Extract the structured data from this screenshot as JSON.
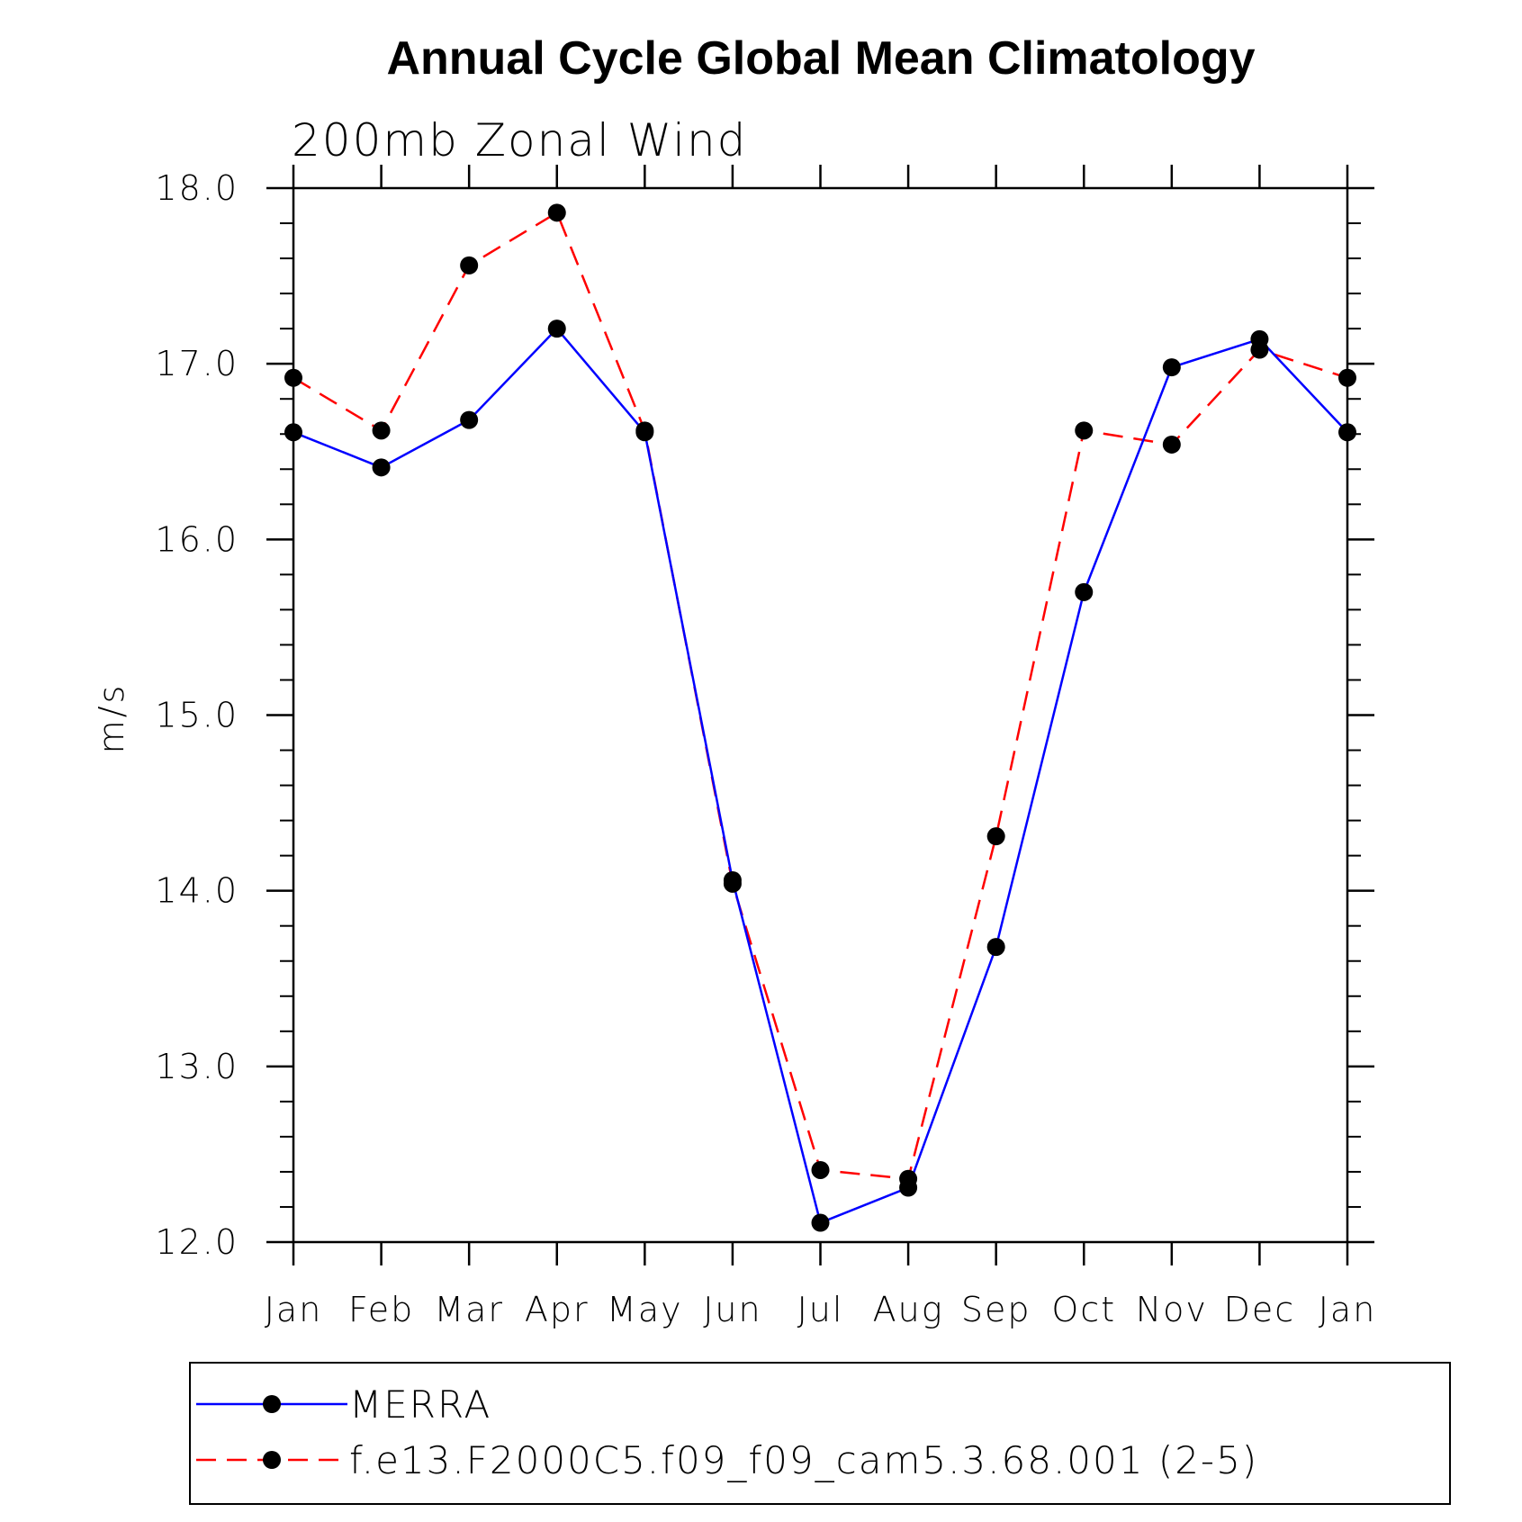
{
  "chart_data": {
    "type": "line",
    "title": "Annual Cycle Global Mean Climatology",
    "subtitle": "200mb  Zonal  Wind",
    "xlabel": "",
    "ylabel": "m/s",
    "categories": [
      "Jan",
      "Feb",
      "Mar",
      "Apr",
      "May",
      "Jun",
      "Jul",
      "Aug",
      "Sep",
      "Oct",
      "Nov",
      "Dec",
      "Jan"
    ],
    "ylim": [
      12.0,
      18.0
    ],
    "yticks": [
      "12.0",
      "13.0",
      "14.0",
      "15.0",
      "16.0",
      "17.0",
      "18.0"
    ],
    "legend_position": "bottom",
    "grid": false,
    "series": [
      {
        "name": "MERRA",
        "color": "#0000ff",
        "dash": "solid",
        "values": [
          16.61,
          16.41,
          16.68,
          17.2,
          16.61,
          14.06,
          12.11,
          12.31,
          13.68,
          15.7,
          16.98,
          17.14,
          16.61
        ]
      },
      {
        "name": "f.e13.F2000C5.f09_f09_cam5.3.68.001 (2-5)",
        "color": "#ff0000",
        "dash": "dashed",
        "values": [
          16.92,
          16.62,
          17.56,
          17.86,
          16.62,
          14.04,
          12.41,
          12.36,
          14.31,
          16.62,
          16.54,
          17.08,
          16.92
        ]
      }
    ]
  }
}
